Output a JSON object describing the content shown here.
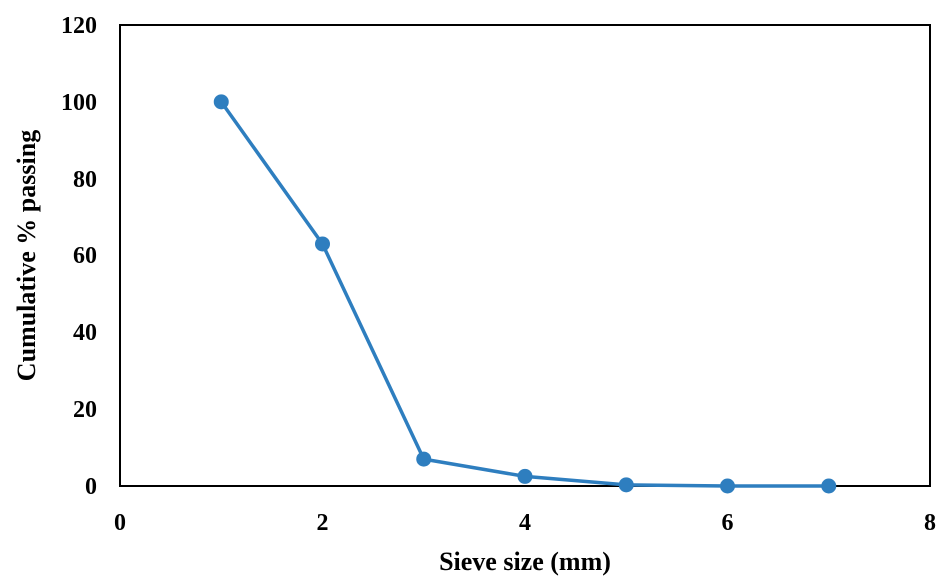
{
  "chart_data": {
    "type": "scatter",
    "title": "",
    "xlabel": "Sieve size (mm)",
    "ylabel": "Cumulative % passing",
    "xlim": [
      0,
      8
    ],
    "ylim": [
      0,
      120
    ],
    "x_ticks": [
      "0",
      "2",
      "4",
      "6",
      "8"
    ],
    "y_ticks": [
      "0",
      "20",
      "40",
      "60",
      "80",
      "100",
      "120"
    ],
    "grid": false,
    "legend": "none",
    "series": [
      {
        "x": [
          1,
          2,
          3,
          4,
          5,
          6,
          7
        ],
        "y": [
          100,
          63,
          7,
          2.5,
          0.3,
          0,
          0
        ],
        "color": "#2e7ebf",
        "markers": true,
        "line": true
      }
    ]
  }
}
